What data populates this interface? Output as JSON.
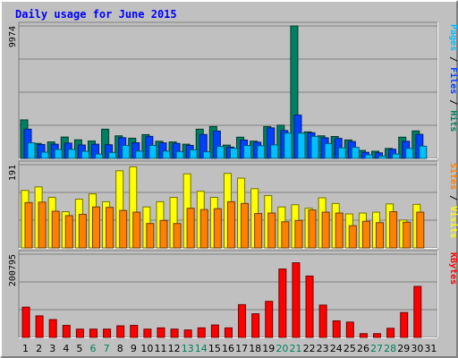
{
  "chart_data": {
    "type": "bar",
    "title": "Daily usage for June 2015",
    "x": [
      "1",
      "2",
      "3",
      "4",
      "5",
      "6",
      "7",
      "8",
      "9",
      "10",
      "11",
      "12",
      "13",
      "14",
      "15",
      "16",
      "17",
      "18",
      "19",
      "20",
      "21",
      "22",
      "23",
      "24",
      "25",
      "26",
      "27",
      "28",
      "29",
      "30",
      "31"
    ],
    "weekend_days": [
      "6",
      "7",
      "13",
      "14",
      "20",
      "21",
      "27",
      "28"
    ],
    "panels": [
      {
        "id": "hits",
        "max_label": "9974",
        "ymax": 9974,
        "label_parts": [
          {
            "text": "Pages",
            "color": "#00c0ff"
          },
          {
            "text": " / ",
            "color": "#000000"
          },
          {
            "text": "Files",
            "color": "#0040ff"
          },
          {
            "text": " / ",
            "color": "#000000"
          },
          {
            "text": "Hits",
            "color": "#008060"
          }
        ],
        "series": [
          {
            "name": "Hits",
            "color": "#008060",
            "values": [
              2900,
              1130,
              1240,
              1610,
              1400,
              1310,
              2200,
              1700,
              1520,
              1790,
              1290,
              1240,
              1070,
              2200,
              2400,
              1000,
              1600,
              1300,
              2400,
              2500,
              9974,
              2000,
              1700,
              1650,
              1390,
              600,
              540,
              750,
              1600,
              2070,
              0
            ]
          },
          {
            "name": "Files",
            "color": "#0040ff",
            "values": [
              2200,
              1050,
              1070,
              1150,
              1010,
              1070,
              1030,
              1560,
              1180,
              1660,
              1170,
              1130,
              980,
              1800,
              2060,
              850,
              1380,
              1220,
              2300,
              2100,
              3260,
              1930,
              1550,
              1510,
              1270,
              460,
              420,
              690,
              1290,
              1810,
              0
            ]
          },
          {
            "name": "Pages",
            "color": "#00c0ff",
            "values": [
              1170,
              470,
              670,
              680,
              540,
              330,
              450,
              970,
              550,
              980,
              550,
              520,
              650,
              500,
              900,
              760,
              970,
              960,
              1020,
              1910,
              1900,
              1660,
              1120,
              800,
              830,
              270,
              180,
              330,
              760,
              920,
              0
            ]
          }
        ]
      },
      {
        "id": "visits",
        "max_label": "191",
        "ymax": 191,
        "label_parts": [
          {
            "text": "Sites",
            "color": "#ff8000"
          },
          {
            "text": " / ",
            "color": "#000000"
          },
          {
            "text": "Visits",
            "color": "#ffff00"
          }
        ],
        "series": [
          {
            "name": "Visits",
            "color": "#ffff00",
            "values": [
              132,
              140,
              116,
              83,
              112,
              124,
              106,
              177,
              186,
              94,
              106,
              116,
              170,
              130,
              116,
              171,
              160,
              136,
              120,
              94,
              99,
              91,
              115,
              102,
              78,
              80,
              82,
              101,
              64,
              100,
              0
            ]
          },
          {
            "name": "Sites",
            "color": "#ff8000",
            "values": [
              104,
              105,
              84,
              74,
              77,
              94,
              93,
              86,
              82,
              56,
              63,
              56,
              91,
              88,
              90,
              106,
              102,
              79,
              80,
              60,
              63,
              87,
              82,
              80,
              51,
              61,
              58,
              83,
              59,
              82,
              0
            ]
          }
        ]
      },
      {
        "id": "kbytes",
        "max_label": "200795",
        "ymax": 200795,
        "label_parts": [
          {
            "text": "KBytes",
            "color": "#ff0000"
          }
        ],
        "series": [
          {
            "name": "KBytes",
            "color": "#ff0000",
            "values": [
              73000,
              52000,
              43000,
              29000,
              20000,
              20000,
              20000,
              28000,
              29000,
              20000,
              23000,
              20000,
              18000,
              23000,
              30000,
              23000,
              79000,
              57000,
              87000,
              165000,
              180000,
              148000,
              78000,
              40000,
              37000,
              9000,
              9000,
              22000,
              60000,
              123000,
              0
            ]
          }
        ]
      }
    ],
    "colors": {
      "background": "#c0c0c0",
      "grid": "#808080",
      "title": "#0000ff",
      "weekend_label": "#00805c",
      "weekday_label": "#000000"
    }
  }
}
